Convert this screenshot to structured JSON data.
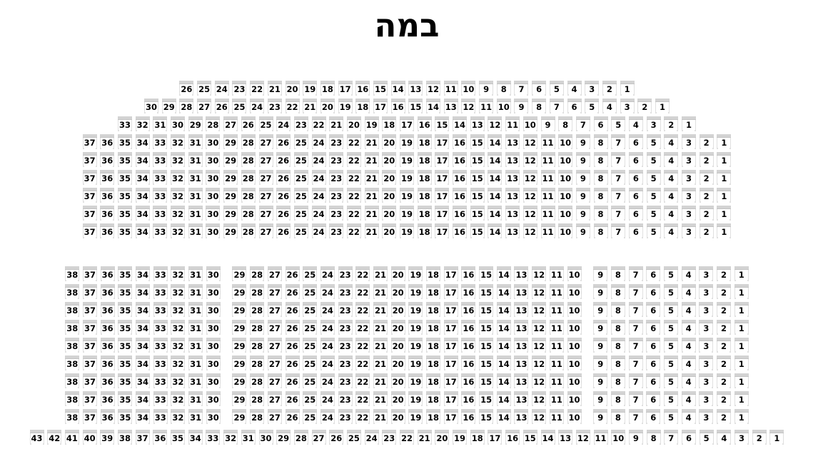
{
  "stage_label": "במה",
  "seat_map": {
    "sections": [
      {
        "id": "upper",
        "rows": [
          {
            "blocks": [
              {
                "from": 26,
                "to": 1
              }
            ]
          },
          {
            "blocks": [
              {
                "from": 30,
                "to": 1
              }
            ]
          },
          {
            "blocks": [
              {
                "from": 33,
                "to": 1
              }
            ]
          },
          {
            "blocks": [
              {
                "from": 37,
                "to": 1
              }
            ]
          },
          {
            "blocks": [
              {
                "from": 37,
                "to": 1
              }
            ]
          },
          {
            "blocks": [
              {
                "from": 37,
                "to": 1
              }
            ]
          },
          {
            "blocks": [
              {
                "from": 37,
                "to": 1
              }
            ]
          },
          {
            "blocks": [
              {
                "from": 37,
                "to": 1
              }
            ]
          },
          {
            "blocks": [
              {
                "from": 37,
                "to": 1
              }
            ]
          }
        ]
      },
      {
        "id": "main",
        "rows": [
          {
            "blocks": [
              {
                "from": 38,
                "to": 30
              },
              {
                "from": 29,
                "to": 10
              },
              {
                "from": 9,
                "to": 1
              }
            ]
          },
          {
            "blocks": [
              {
                "from": 38,
                "to": 30
              },
              {
                "from": 29,
                "to": 10
              },
              {
                "from": 9,
                "to": 1
              }
            ]
          },
          {
            "blocks": [
              {
                "from": 38,
                "to": 30
              },
              {
                "from": 29,
                "to": 10
              },
              {
                "from": 9,
                "to": 1
              }
            ]
          },
          {
            "blocks": [
              {
                "from": 38,
                "to": 30
              },
              {
                "from": 29,
                "to": 10
              },
              {
                "from": 9,
                "to": 1
              }
            ]
          },
          {
            "blocks": [
              {
                "from": 38,
                "to": 30
              },
              {
                "from": 29,
                "to": 10
              },
              {
                "from": 9,
                "to": 1
              }
            ]
          },
          {
            "blocks": [
              {
                "from": 38,
                "to": 30
              },
              {
                "from": 29,
                "to": 10
              },
              {
                "from": 9,
                "to": 1
              }
            ]
          },
          {
            "blocks": [
              {
                "from": 38,
                "to": 30
              },
              {
                "from": 29,
                "to": 10
              },
              {
                "from": 9,
                "to": 1
              }
            ]
          },
          {
            "blocks": [
              {
                "from": 38,
                "to": 30
              },
              {
                "from": 29,
                "to": 10
              },
              {
                "from": 9,
                "to": 1
              }
            ]
          },
          {
            "blocks": [
              {
                "from": 38,
                "to": 30
              },
              {
                "from": 29,
                "to": 10
              },
              {
                "from": 9,
                "to": 1
              }
            ]
          }
        ]
      },
      {
        "id": "back",
        "rows": [
          {
            "blocks": [
              {
                "from": 43,
                "to": 1
              }
            ]
          }
        ]
      }
    ]
  },
  "colors": {
    "background": "#ffffff",
    "title_text": "#000000",
    "seat_back": "#d3d3d3",
    "seat_back_edge": "#c4c4c4",
    "seat_side": "#e0e0e0",
    "seat_number_text": "#000000"
  }
}
